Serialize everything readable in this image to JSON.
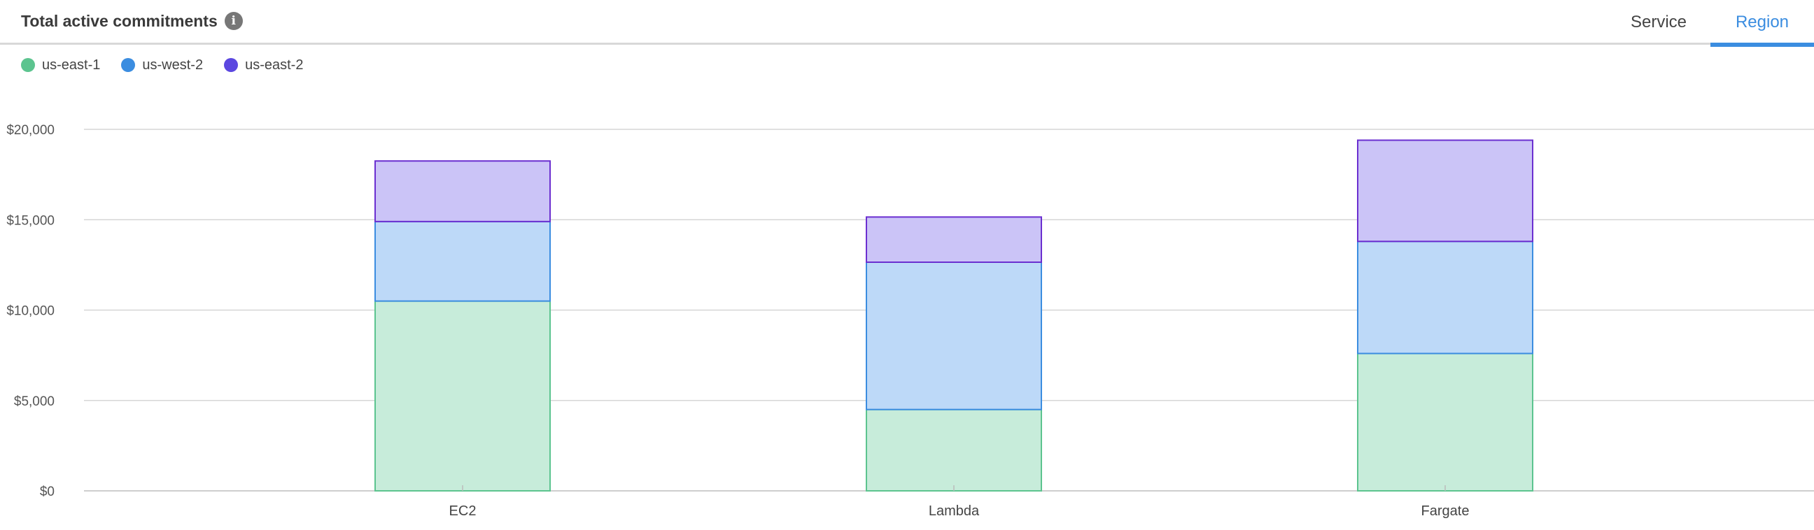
{
  "header": {
    "title": "Total active commitments",
    "info_icon": "info-icon",
    "tabs": [
      {
        "label": "Service",
        "active": false
      },
      {
        "label": "Region",
        "active": true
      }
    ]
  },
  "colors": {
    "accent": "#3b8de0",
    "series": [
      {
        "fill": "#c7ecda",
        "stroke": "#5cc48f",
        "dot": "#5cc48f"
      },
      {
        "fill": "#bdd9f8",
        "stroke": "#3b8de0",
        "dot": "#3b8de0"
      },
      {
        "fill": "#cbc4f7",
        "stroke": "#6b2fd0",
        "dot": "#5b47e0"
      }
    ]
  },
  "chart_data": {
    "type": "bar",
    "stacked": true,
    "categories": [
      "EC2",
      "Lambda",
      "Fargate"
    ],
    "series": [
      {
        "name": "us-east-1",
        "values": [
          10500,
          4500,
          7600
        ]
      },
      {
        "name": "us-west-2",
        "values": [
          4400,
          8150,
          6200
        ]
      },
      {
        "name": "us-east-2",
        "values": [
          3350,
          2500,
          5600
        ]
      }
    ],
    "ylim": [
      0,
      20000
    ],
    "yticks": [
      "$0",
      "$5,000",
      "$10,000",
      "$15,000",
      "$20,000"
    ],
    "ytick_values": [
      0,
      5000,
      10000,
      15000,
      20000
    ],
    "grid": true,
    "legend_position": "top-left"
  }
}
